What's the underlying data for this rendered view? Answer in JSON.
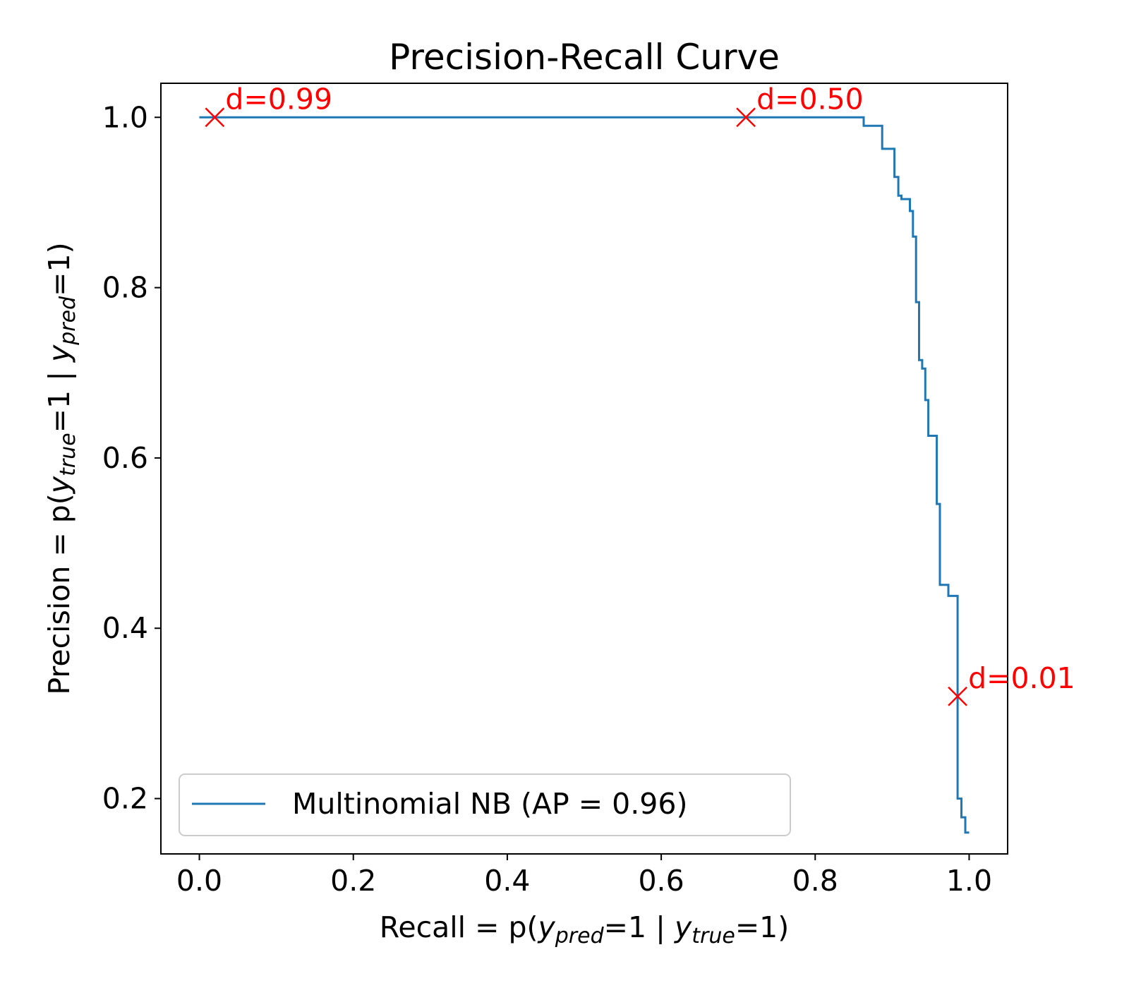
{
  "chart_data": {
    "type": "line",
    "title": "Precision-Recall Curve",
    "xlabel": {
      "parts": [
        {
          "text": "Recall = p(",
          "italic": false
        },
        {
          "text": "y",
          "italic": true
        },
        {
          "text": "pred",
          "italic": true,
          "sub": true
        },
        {
          "text": "=1 | ",
          "italic": false
        },
        {
          "text": "y",
          "italic": true
        },
        {
          "text": "true",
          "italic": true,
          "sub": true
        },
        {
          "text": "=1)",
          "italic": false
        }
      ]
    },
    "ylabel": {
      "parts": [
        {
          "text": "Precision = p(",
          "italic": false
        },
        {
          "text": "y",
          "italic": true
        },
        {
          "text": "true",
          "italic": true,
          "sub": true
        },
        {
          "text": "=1 | ",
          "italic": false
        },
        {
          "text": "y",
          "italic": true
        },
        {
          "text": "pred",
          "italic": true,
          "sub": true
        },
        {
          "text": "=1)",
          "italic": false
        }
      ]
    },
    "xlim": [
      -0.05,
      1.05
    ],
    "ylim": [
      0.135,
      1.04
    ],
    "xticks": [
      0.0,
      0.2,
      0.4,
      0.6,
      0.8,
      1.0
    ],
    "xtick_labels": [
      "0.0",
      "0.2",
      "0.4",
      "0.6",
      "0.8",
      "1.0"
    ],
    "yticks": [
      0.2,
      0.4,
      0.6,
      0.8,
      1.0
    ],
    "ytick_labels": [
      "0.2",
      "0.4",
      "0.6",
      "0.8",
      "1.0"
    ],
    "grid": false,
    "legend": {
      "position": "lower-left"
    },
    "series": [
      {
        "name": "Multinomial NB (AP = 0.96)",
        "color": "#1f77b4",
        "drawstyle": "steps-post",
        "points": [
          [
            0.0,
            1.0
          ],
          [
            0.863,
            1.0
          ],
          [
            0.863,
            0.99
          ],
          [
            0.887,
            0.99
          ],
          [
            0.887,
            0.963
          ],
          [
            0.903,
            0.963
          ],
          [
            0.903,
            0.93
          ],
          [
            0.908,
            0.93
          ],
          [
            0.908,
            0.908
          ],
          [
            0.912,
            0.908
          ],
          [
            0.912,
            0.904
          ],
          [
            0.923,
            0.904
          ],
          [
            0.923,
            0.89
          ],
          [
            0.927,
            0.89
          ],
          [
            0.927,
            0.86
          ],
          [
            0.931,
            0.86
          ],
          [
            0.931,
            0.783
          ],
          [
            0.935,
            0.783
          ],
          [
            0.935,
            0.715
          ],
          [
            0.939,
            0.715
          ],
          [
            0.939,
            0.705
          ],
          [
            0.943,
            0.705
          ],
          [
            0.943,
            0.668
          ],
          [
            0.947,
            0.668
          ],
          [
            0.947,
            0.626
          ],
          [
            0.958,
            0.626
          ],
          [
            0.958,
            0.546
          ],
          [
            0.962,
            0.546
          ],
          [
            0.962,
            0.451
          ],
          [
            0.973,
            0.451
          ],
          [
            0.973,
            0.438
          ],
          [
            0.985,
            0.438
          ],
          [
            0.985,
            0.2
          ],
          [
            0.99,
            0.2
          ],
          [
            0.99,
            0.178
          ],
          [
            0.995,
            0.178
          ],
          [
            0.995,
            0.16
          ],
          [
            1.0,
            0.16
          ]
        ]
      }
    ],
    "annotations": [
      {
        "label": "d=0.99",
        "x": 0.02,
        "y": 1.0,
        "marker": "x",
        "color": "#ff0000"
      },
      {
        "label": "d=0.50",
        "x": 0.71,
        "y": 1.0,
        "marker": "x",
        "color": "#ff0000"
      },
      {
        "label": "d=0.01",
        "x": 0.985,
        "y": 0.32,
        "marker": "x",
        "color": "#ff0000"
      }
    ]
  }
}
